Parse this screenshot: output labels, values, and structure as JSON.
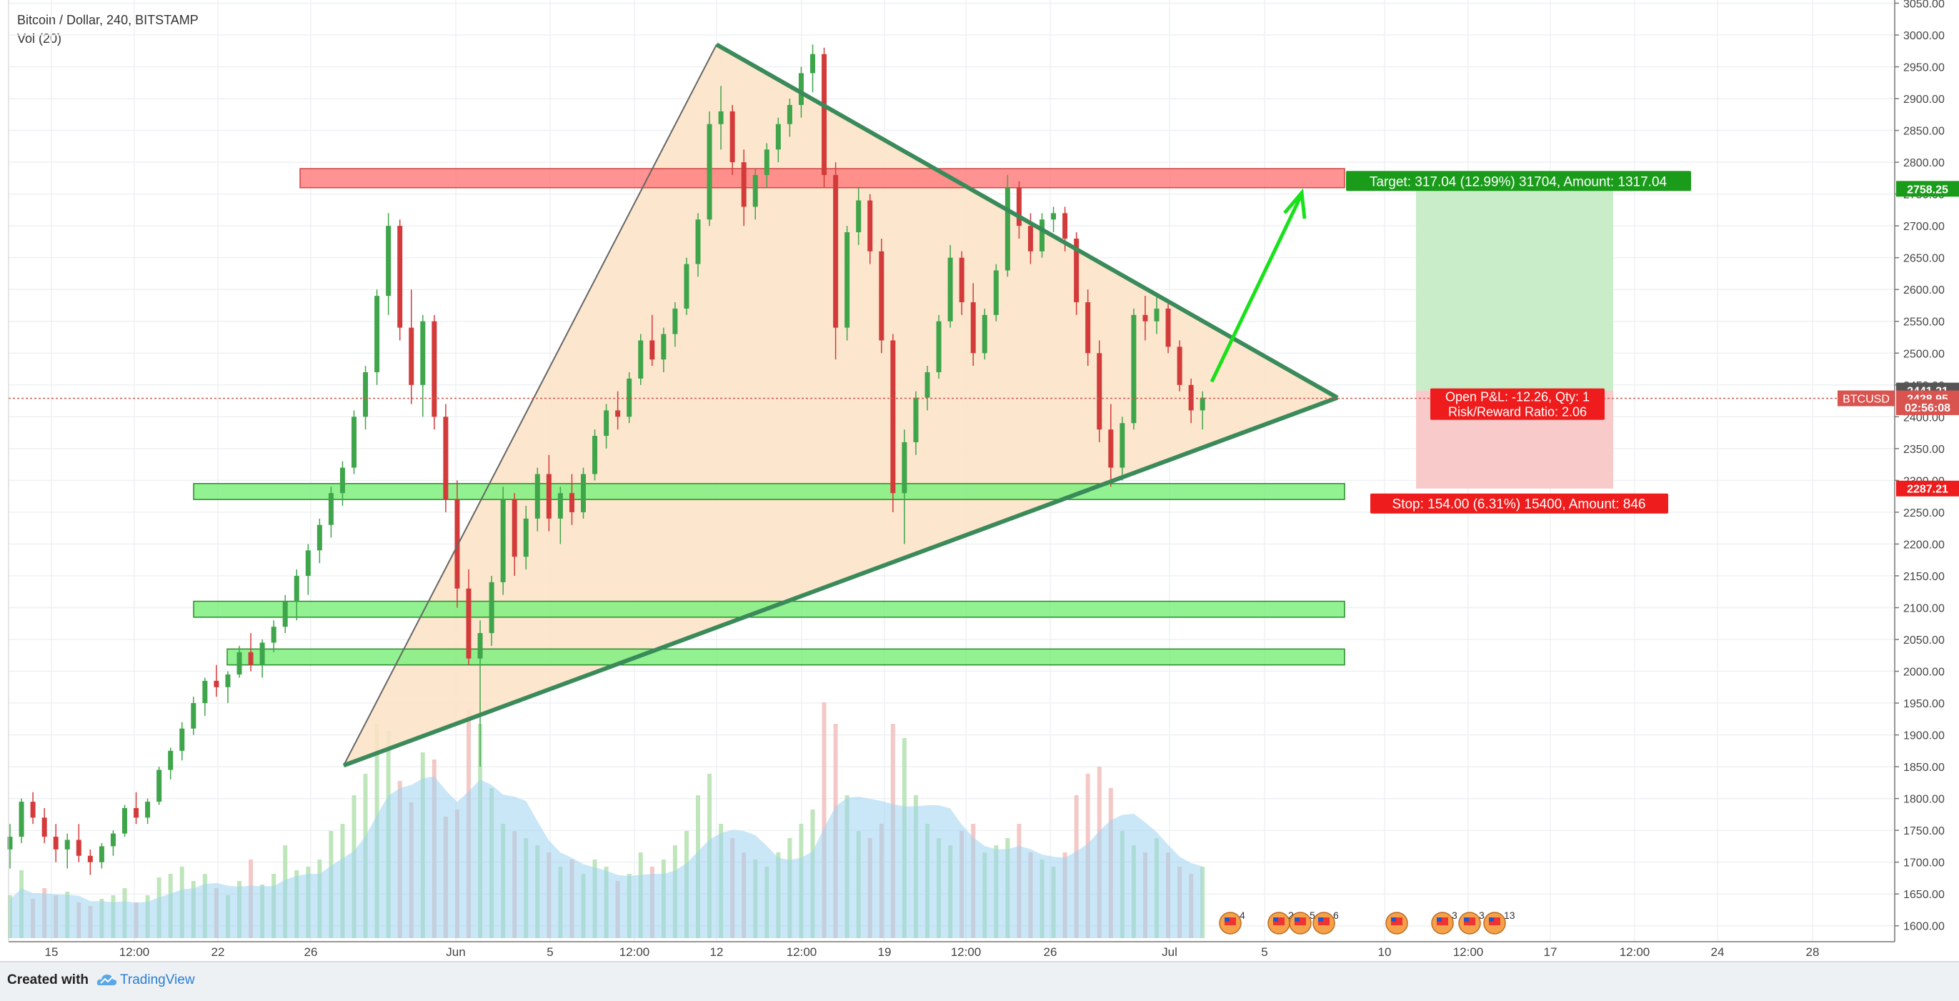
{
  "header": {
    "title": "Bitcoin / Dollar, 240, BITSTAMP",
    "volume_label": "Vol (20)"
  },
  "footer": {
    "created_with": "Created with",
    "brand": "TradingView"
  },
  "colors": {
    "up": "#3ea54a",
    "down": "#d33b3b",
    "triangle_fill": "#fbe3c6",
    "triangle_line": "#3a8a5a",
    "resistance_zone": "#ff7f7f",
    "support_zone": "#7ff07f",
    "arrow": "#19e11a",
    "target_zone": "#c9ecc9",
    "stop_zone": "#f8caca",
    "volume_area": "#9fd3f0"
  },
  "chart_data": {
    "type": "candlestick",
    "symbol": "BTCUSD",
    "y_axis": {
      "ticks": [
        1600,
        1650,
        1700,
        1750,
        1800,
        1850,
        1900,
        1950,
        2000,
        2050,
        2100,
        2150,
        2200,
        2250,
        2300,
        2350,
        2400,
        2450,
        2500,
        2550,
        2600,
        2650,
        2700,
        2750,
        2800,
        2850,
        2900,
        2950,
        3000,
        3050
      ],
      "tick_labels": [
        "1600.00",
        "1650.00",
        "1700.00",
        "1750.00",
        "1800.00",
        "1850.00",
        "1900.00",
        "1950.00",
        "2000.00",
        "2050.00",
        "2100.00",
        "2150.00",
        "2200.00",
        "2250.00",
        "2300.00",
        "2350.00",
        "2400.00",
        "2450.00",
        "2500.00",
        "2550.00",
        "2600.00",
        "2650.00",
        "2700.00",
        "2750.00",
        "2800.00",
        "2850.00",
        "2900.00",
        "2950.00",
        "3000.00",
        "3050.00"
      ],
      "range": [
        1575,
        3055
      ]
    },
    "x_axis": {
      "tick_labels": [
        "15",
        "12:00",
        "22",
        "26",
        "Jun",
        "5",
        "12:00",
        "12",
        "12:00",
        "19",
        "12:00",
        "26",
        "Jul",
        "5",
        "10",
        "12:00",
        "17",
        "12:00",
        "24",
        "28"
      ]
    },
    "price_labels": [
      {
        "text": "2758.25",
        "value": 2758.25,
        "color": "#1a9c1a"
      },
      {
        "text": "2441.21",
        "value": 2441.21,
        "color": "#555555"
      },
      {
        "text": "2428.95",
        "value": 2428.95,
        "color": "#d9534f",
        "tag": "BTCUSD"
      },
      {
        "text": "02:56:08",
        "value": 2415,
        "color": "#d9534f"
      },
      {
        "text": "2287.21",
        "value": 2287.21,
        "color": "#ee1c1c"
      }
    ],
    "current_price": 2428.95,
    "triangle": {
      "apex_top_price": 2985,
      "apex_bottom_price": 1852,
      "apex_right_price": 2430
    },
    "zones": {
      "resistance": {
        "from": 2760,
        "to": 2790
      },
      "support": [
        {
          "from": 2270,
          "to": 2295
        },
        {
          "from": 2085,
          "to": 2110
        },
        {
          "from": 2010,
          "to": 2035
        }
      ]
    },
    "position": {
      "target_label": "Target: 317.04 (12.99%) 31704, Amount: 1317.04",
      "stop_label": "Stop: 154.00 (6.31%) 15400, Amount: 846",
      "pnl_label": "Open P&L: -12.26, Qty: 1",
      "ratio_label": "Risk/Reward Ratio: 2.06",
      "entry": 2441.21,
      "target": 2758.25,
      "stop": 2287.21
    },
    "events": [
      "4",
      "2",
      "5",
      "6",
      "",
      "3",
      "3",
      "13"
    ],
    "ohlc": [
      [
        1720,
        1760,
        1690,
        1740
      ],
      [
        1740,
        1800,
        1730,
        1795
      ],
      [
        1795,
        1810,
        1760,
        1770
      ],
      [
        1770,
        1785,
        1730,
        1740
      ],
      [
        1740,
        1760,
        1700,
        1720
      ],
      [
        1720,
        1745,
        1690,
        1735
      ],
      [
        1735,
        1760,
        1700,
        1710
      ],
      [
        1710,
        1720,
        1680,
        1700
      ],
      [
        1700,
        1730,
        1690,
        1725
      ],
      [
        1725,
        1750,
        1710,
        1745
      ],
      [
        1745,
        1790,
        1740,
        1785
      ],
      [
        1785,
        1810,
        1760,
        1770
      ],
      [
        1770,
        1800,
        1760,
        1795
      ],
      [
        1795,
        1850,
        1790,
        1845
      ],
      [
        1845,
        1880,
        1830,
        1875
      ],
      [
        1875,
        1920,
        1860,
        1910
      ],
      [
        1910,
        1960,
        1900,
        1950
      ],
      [
        1950,
        1990,
        1930,
        1985
      ],
      [
        1985,
        2010,
        1960,
        1975
      ],
      [
        1975,
        2000,
        1950,
        1995
      ],
      [
        1995,
        2040,
        1990,
        2030
      ],
      [
        2030,
        2060,
        2000,
        2010
      ],
      [
        2010,
        2050,
        1990,
        2045
      ],
      [
        2045,
        2080,
        2030,
        2070
      ],
      [
        2070,
        2120,
        2060,
        2110
      ],
      [
        2110,
        2160,
        2080,
        2150
      ],
      [
        2150,
        2200,
        2120,
        2190
      ],
      [
        2190,
        2240,
        2170,
        2230
      ],
      [
        2230,
        2290,
        2210,
        2280
      ],
      [
        2280,
        2330,
        2260,
        2320
      ],
      [
        2320,
        2410,
        2310,
        2400
      ],
      [
        2400,
        2480,
        2380,
        2470
      ],
      [
        2470,
        2600,
        2450,
        2590
      ],
      [
        2590,
        2720,
        2560,
        2700
      ],
      [
        2700,
        2710,
        2520,
        2540
      ],
      [
        2540,
        2600,
        2420,
        2450
      ],
      [
        2450,
        2560,
        2400,
        2550
      ],
      [
        2550,
        2560,
        2380,
        2400
      ],
      [
        2400,
        2420,
        2250,
        2270
      ],
      [
        2270,
        2300,
        2100,
        2130
      ],
      [
        2130,
        2160,
        2010,
        2020
      ],
      [
        2020,
        2080,
        1850,
        2060
      ],
      [
        2060,
        2150,
        2040,
        2140
      ],
      [
        2140,
        2290,
        2120,
        2270
      ],
      [
        2270,
        2280,
        2150,
        2180
      ],
      [
        2180,
        2260,
        2160,
        2240
      ],
      [
        2240,
        2320,
        2220,
        2310
      ],
      [
        2310,
        2340,
        2220,
        2240
      ],
      [
        2240,
        2290,
        2200,
        2280
      ],
      [
        2280,
        2310,
        2230,
        2250
      ],
      [
        2250,
        2320,
        2240,
        2310
      ],
      [
        2310,
        2380,
        2300,
        2370
      ],
      [
        2370,
        2420,
        2350,
        2410
      ],
      [
        2410,
        2440,
        2380,
        2400
      ],
      [
        2400,
        2470,
        2390,
        2460
      ],
      [
        2460,
        2530,
        2450,
        2520
      ],
      [
        2520,
        2560,
        2480,
        2490
      ],
      [
        2490,
        2540,
        2470,
        2530
      ],
      [
        2530,
        2580,
        2510,
        2570
      ],
      [
        2570,
        2650,
        2560,
        2640
      ],
      [
        2640,
        2720,
        2620,
        2710
      ],
      [
        2710,
        2880,
        2700,
        2860
      ],
      [
        2860,
        2920,
        2820,
        2880
      ],
      [
        2880,
        2890,
        2780,
        2800
      ],
      [
        2800,
        2820,
        2700,
        2730
      ],
      [
        2730,
        2790,
        2710,
        2780
      ],
      [
        2780,
        2830,
        2760,
        2820
      ],
      [
        2820,
        2870,
        2800,
        2860
      ],
      [
        2860,
        2900,
        2840,
        2890
      ],
      [
        2890,
        2950,
        2870,
        2940
      ],
      [
        2940,
        2985,
        2910,
        2970
      ],
      [
        2970,
        2980,
        2760,
        2780
      ],
      [
        2780,
        2800,
        2490,
        2540
      ],
      [
        2540,
        2700,
        2520,
        2690
      ],
      [
        2690,
        2760,
        2670,
        2740
      ],
      [
        2740,
        2750,
        2640,
        2660
      ],
      [
        2660,
        2680,
        2500,
        2520
      ],
      [
        2520,
        2530,
        2250,
        2280
      ],
      [
        2280,
        2380,
        2200,
        2360
      ],
      [
        2360,
        2440,
        2340,
        2430
      ],
      [
        2430,
        2480,
        2410,
        2470
      ],
      [
        2470,
        2560,
        2460,
        2550
      ],
      [
        2550,
        2670,
        2540,
        2650
      ],
      [
        2650,
        2660,
        2560,
        2580
      ],
      [
        2580,
        2610,
        2480,
        2500
      ],
      [
        2500,
        2570,
        2490,
        2560
      ],
      [
        2560,
        2640,
        2550,
        2630
      ],
      [
        2630,
        2780,
        2620,
        2760
      ],
      [
        2760,
        2770,
        2680,
        2700
      ],
      [
        2700,
        2720,
        2640,
        2660
      ],
      [
        2660,
        2720,
        2650,
        2710
      ],
      [
        2710,
        2730,
        2690,
        2720
      ],
      [
        2720,
        2730,
        2660,
        2680
      ],
      [
        2680,
        2690,
        2560,
        2580
      ],
      [
        2580,
        2600,
        2480,
        2500
      ],
      [
        2500,
        2520,
        2360,
        2380
      ],
      [
        2380,
        2420,
        2290,
        2320
      ],
      [
        2320,
        2400,
        2300,
        2390
      ],
      [
        2390,
        2570,
        2380,
        2560
      ],
      [
        2560,
        2590,
        2520,
        2550
      ],
      [
        2550,
        2590,
        2530,
        2570
      ],
      [
        2570,
        2580,
        2500,
        2510
      ],
      [
        2510,
        2520,
        2440,
        2450
      ],
      [
        2450,
        2460,
        2390,
        2410
      ],
      [
        2410,
        2440,
        2380,
        2430
      ]
    ],
    "volume": [
      60,
      95,
      55,
      70,
      60,
      65,
      50,
      45,
      55,
      60,
      70,
      50,
      60,
      85,
      90,
      100,
      80,
      90,
      70,
      60,
      80,
      110,
      75,
      90,
      130,
      95,
      100,
      110,
      150,
      160,
      200,
      230,
      300,
      290,
      220,
      190,
      260,
      250,
      170,
      180,
      320,
      300,
      210,
      160,
      150,
      140,
      130,
      120,
      100,
      110,
      90,
      110,
      100,
      80,
      90,
      120,
      100,
      110,
      130,
      150,
      200,
      230,
      160,
      140,
      120,
      110,
      100,
      120,
      140,
      160,
      180,
      330,
      300,
      200,
      150,
      140,
      160,
      300,
      280,
      200,
      160,
      140,
      130,
      150,
      160,
      120,
      130,
      140,
      160,
      120,
      110,
      100,
      120,
      200,
      230,
      240,
      210,
      150,
      130,
      120,
      140,
      120,
      100,
      90,
      100
    ]
  }
}
